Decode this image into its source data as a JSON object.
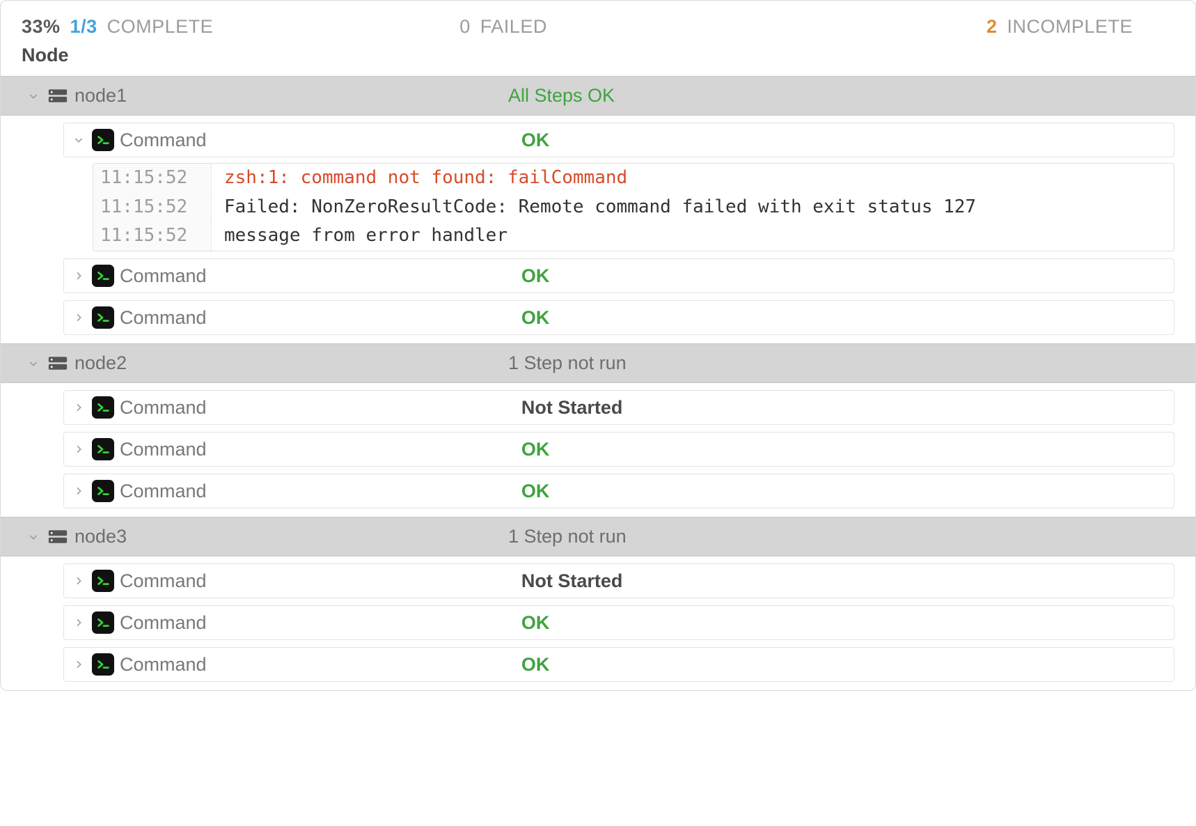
{
  "colors": {
    "ok_green": "#3fa33f",
    "link_blue": "#3fa3e0",
    "warn_orange": "#e28b2c",
    "error_red": "#d84b2a",
    "grey_text": "#6e6e6e",
    "light_grey": "#9b9b9b",
    "node_bg": "#d5d5d5",
    "border": "#e3e3e3"
  },
  "summary": {
    "pct": "33%",
    "frac": "1/3",
    "complete_label": "COMPLETE",
    "failed_count": "0",
    "failed_label": "FAILED",
    "incomplete_count": "2",
    "incomplete_label": "INCOMPLETE"
  },
  "header": {
    "node": "Node"
  },
  "labels": {
    "command": "Command"
  },
  "statuses": {
    "ok": "OK",
    "not_started": "Not Started",
    "all_ok": "All Steps OK",
    "not_run_1": "1 Step not run"
  },
  "nodes": [
    {
      "name": "node1",
      "status_key": "all_ok",
      "status_class": "ok",
      "steps": [
        {
          "label_key": "command",
          "status_key": "ok",
          "status_class": "ok",
          "expanded": true,
          "log": [
            {
              "ts": "11:15:52",
              "msg": "zsh:1: command not found: failCommand",
              "cls": "err"
            },
            {
              "ts": "11:15:52",
              "msg": "Failed: NonZeroResultCode: Remote command failed with exit status 127",
              "cls": "plain"
            },
            {
              "ts": "11:15:52",
              "msg": "message from error handler",
              "cls": "plain"
            }
          ]
        },
        {
          "label_key": "command",
          "status_key": "ok",
          "status_class": "ok",
          "expanded": false
        },
        {
          "label_key": "command",
          "status_key": "ok",
          "status_class": "ok",
          "expanded": false
        }
      ]
    },
    {
      "name": "node2",
      "status_key": "not_run_1",
      "status_class": "notrun",
      "steps": [
        {
          "label_key": "command",
          "status_key": "not_started",
          "status_class": "notstarted",
          "expanded": false
        },
        {
          "label_key": "command",
          "status_key": "ok",
          "status_class": "ok",
          "expanded": false
        },
        {
          "label_key": "command",
          "status_key": "ok",
          "status_class": "ok",
          "expanded": false
        }
      ]
    },
    {
      "name": "node3",
      "status_key": "not_run_1",
      "status_class": "notrun",
      "steps": [
        {
          "label_key": "command",
          "status_key": "not_started",
          "status_class": "notstarted",
          "expanded": false
        },
        {
          "label_key": "command",
          "status_key": "ok",
          "status_class": "ok",
          "expanded": false
        },
        {
          "label_key": "command",
          "status_key": "ok",
          "status_class": "ok",
          "expanded": false
        }
      ]
    }
  ]
}
